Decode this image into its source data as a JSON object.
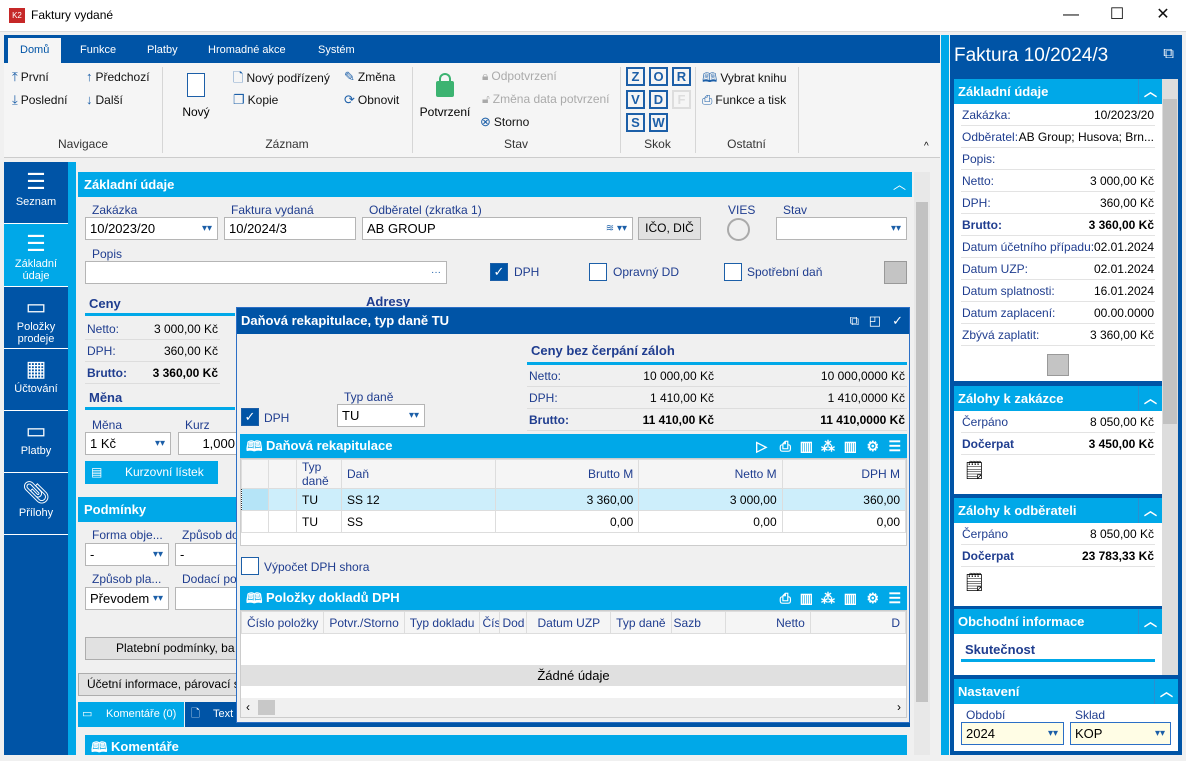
{
  "window": {
    "title": "Faktury vydané",
    "minimize": "—",
    "maximize": "☐",
    "close": "✕"
  },
  "ribbon": {
    "tabs": [
      "Domů",
      "Funkce",
      "Platby",
      "Hromadné akce",
      "Systém"
    ],
    "navigace": {
      "first": "První",
      "last": "Poslední",
      "prev": "Předchozí",
      "next": "Další",
      "label": "Navigace"
    },
    "zaznam": {
      "new": "Nový",
      "new_child": "Nový podřízený",
      "copy": "Kopie",
      "change": "Změna",
      "refresh": "Obnovit",
      "label": "Záznam"
    },
    "stav": {
      "confirm": "Potvrzení",
      "unconfirm": "Odpotvrzení",
      "change_date": "Změna data potvrzení",
      "storno": "Storno",
      "label": "Stav"
    },
    "skok": {
      "keys": [
        "Z",
        "O",
        "R",
        "V",
        "D",
        "F",
        "S",
        "W"
      ],
      "label": "Skok"
    },
    "ostatni": {
      "book": "Vybrat knihu",
      "print": "Funkce a tisk",
      "label": "Ostatní"
    }
  },
  "sidebar": [
    {
      "label": "Seznam",
      "icon": "menu-icon"
    },
    {
      "label": "Základní údaje",
      "icon": "list-icon",
      "active": true
    },
    {
      "label": "Položky prodeje",
      "icon": "box-icon"
    },
    {
      "label": "Účtování",
      "icon": "calculator-icon"
    },
    {
      "label": "Platby",
      "icon": "box-icon"
    },
    {
      "label": "Přílohy",
      "icon": "paperclip-icon"
    }
  ],
  "main": {
    "section": "Základní údaje",
    "zakazka_label": "Zakázka",
    "zakazka": "10/2023/20",
    "faktura_label": "Faktura vydaná",
    "faktura": "10/2024/3",
    "odberatel_label": "Odběratel (zkratka 1)",
    "odberatel": "AB GROUP",
    "ico_btn": "IČO, DIČ",
    "vies": "VIES",
    "stav_label": "Stav",
    "stav": "",
    "popis_label": "Popis",
    "popis": "",
    "ellipsis": "···",
    "dph": "DPH",
    "opravny": "Opravný DD",
    "spotrebni": "Spotřební daň",
    "ceny": "Ceny",
    "adresy": "Adresy",
    "netto_l": "Netto:",
    "netto": "3 000,00 Kč",
    "dph_l": "DPH:",
    "dph_v": "360,00 Kč",
    "brutto_l": "Brutto:",
    "brutto": "3 360,00 Kč",
    "mena_h": "Měna",
    "mena_label": "Měna",
    "mena": "1 Kč",
    "kurz_label": "Kurz",
    "kurz": "1,000",
    "kurz_btn": "Kurzovní lístek",
    "podminky": "Podmínky",
    "forma_label": "Forma obje...",
    "forma": "-",
    "zpusob_d_label": "Způsob do",
    "zpusob_d": "-",
    "zpusob_p_label": "Způsob pla...",
    "zpusob_p": "Převodem",
    "dodaci_label": "Dodací po",
    "plat_btn": "Platební podmínky, ba",
    "ucet_btn": "Účetní informace, párovací s",
    "tab_koment": "Komentáře (0)",
    "tab_text": "Text",
    "koment_h": "Komentáře"
  },
  "dialog": {
    "title": "Daňová rekapitulace, typ daně TU",
    "dph": "DPH",
    "typ_label": "Typ daně",
    "typ": "TU",
    "ceny_h": "Ceny bez čerpání záloh",
    "prices": [
      {
        "k": "Netto:",
        "v1": "10 000,00 Kč",
        "v2": "10 000,0000 Kč"
      },
      {
        "k": "DPH:",
        "v1": "1 410,00 Kč",
        "v2": "1 410,0000 Kč"
      },
      {
        "k": "Brutto:",
        "v1": "11 410,00 Kč",
        "v2": "11 410,0000 Kč"
      }
    ],
    "rekap_h": "Daňová rekapitulace",
    "rekap_cols": [
      "Typ daně",
      "Daň",
      "Brutto M",
      "Netto M",
      "DPH M"
    ],
    "rekap_rows": [
      [
        "TU",
        "SS 12",
        "3 360,00",
        "3 000,00",
        "360,00"
      ],
      [
        "TU",
        "SS",
        "0,00",
        "0,00",
        "0,00"
      ]
    ],
    "vypocet": "Výpočet DPH shora",
    "polozky_h": "Položky dokladů DPH",
    "polozky_cols": [
      "Číslo položky",
      "Potvr./Storno",
      "Typ dokladu",
      "Číslo",
      "Dod",
      "Datum UZP",
      "Typ daně",
      "Sazb",
      "Netto",
      "D"
    ],
    "empty": "Žádné údaje"
  },
  "right": {
    "title": "Faktura 10/2024/3",
    "zakladni": {
      "h": "Základní údaje",
      "rows": [
        [
          "Zakázka:",
          "10/2023/20"
        ],
        [
          "Odběratel:",
          "AB Group; Husova; Brn..."
        ],
        [
          "Popis:",
          ""
        ],
        [
          "Netto:",
          "3 000,00 Kč"
        ],
        [
          "DPH:",
          "360,00 Kč"
        ],
        [
          "Brutto:",
          "3 360,00 Kč"
        ],
        [
          "Datum účetního případu:",
          "02.01.2024"
        ],
        [
          "Datum UZP:",
          "02.01.2024"
        ],
        [
          "Datum splatnosti:",
          "16.01.2024"
        ],
        [
          "Datum zaplacení:",
          "00.00.0000"
        ],
        [
          "Zbývá zaplatit:",
          "3 360,00 Kč"
        ]
      ]
    },
    "zal_zak": {
      "h": "Zálohy k zakázce",
      "cerpano_l": "Čerpáno",
      "cerpano": "8 050,00 Kč",
      "docerpat_l": "Dočerpat",
      "docerpat": "3 450,00 Kč"
    },
    "zal_odb": {
      "h": "Zálohy k odběrateli",
      "cerpano_l": "Čerpáno",
      "cerpano": "8 050,00 Kč",
      "docerpat_l": "Dočerpat",
      "docerpat": "23 783,33 Kč"
    },
    "obchodni": {
      "h": "Obchodní informace",
      "sub": "Skutečnost"
    },
    "nastaveni": {
      "h": "Nastavení",
      "obdobi_l": "Období",
      "obdobi": "2024",
      "sklad_l": "Sklad",
      "sklad": "KOP"
    }
  }
}
